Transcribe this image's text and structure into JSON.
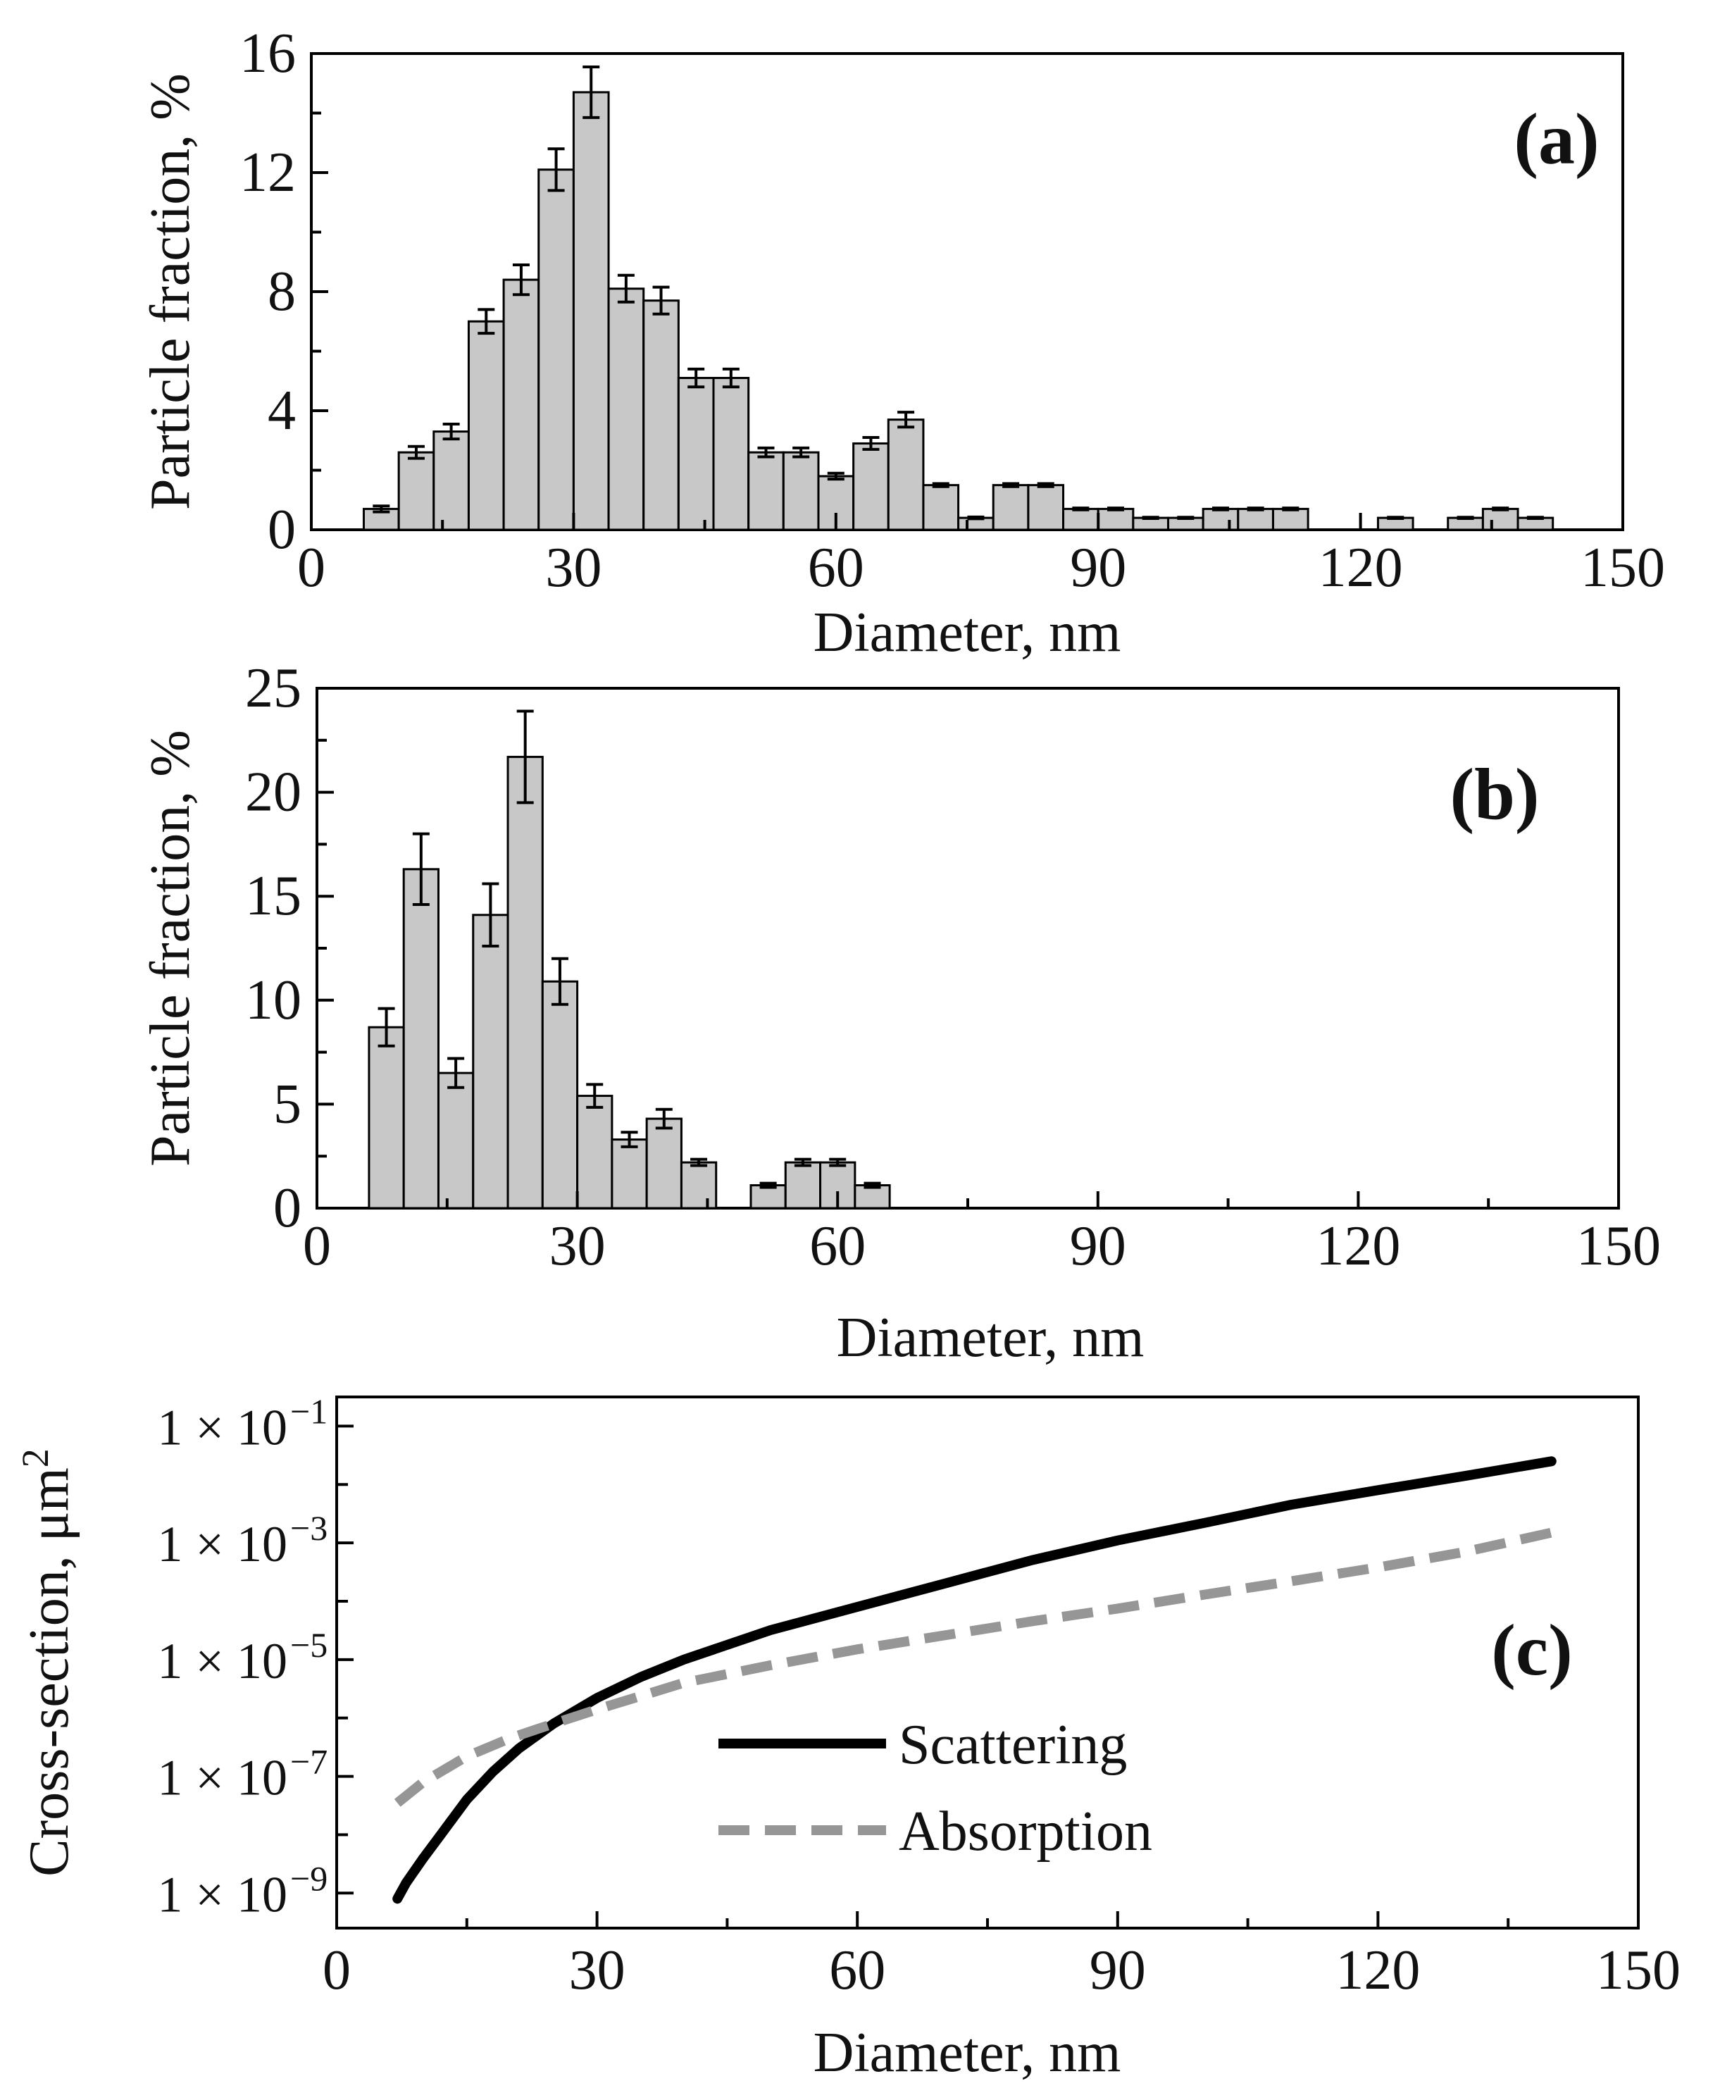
{
  "chart_data": [
    {
      "panel": "(a)",
      "type": "bar",
      "xlabel": "Diameter, nm",
      "ylabel": "Particle fraction, %",
      "xlim": [
        0,
        150
      ],
      "ylim": [
        0,
        16
      ],
      "xticks": [
        0,
        30,
        60,
        90,
        120,
        150
      ],
      "yticks": [
        0,
        4,
        8,
        12,
        16
      ],
      "bin_width": 4,
      "bin_centers": [
        8,
        12,
        16,
        20,
        24,
        28,
        32,
        36,
        40,
        44,
        48,
        52,
        56,
        60,
        64,
        68,
        72,
        76,
        80,
        84,
        88,
        92,
        96,
        100,
        104,
        108,
        112,
        124,
        132,
        136,
        140
      ],
      "values": [
        0.7,
        2.6,
        3.3,
        7.0,
        8.4,
        12.1,
        14.7,
        8.1,
        7.7,
        5.1,
        5.1,
        2.6,
        2.6,
        1.8,
        2.9,
        3.7,
        1.5,
        0.4,
        1.5,
        1.5,
        0.7,
        0.7,
        0.4,
        0.4,
        0.7,
        0.7,
        0.7,
        0.4,
        0.4,
        0.7,
        0.4
      ],
      "errors": [
        0.1,
        0.2,
        0.25,
        0.4,
        0.5,
        0.7,
        0.85,
        0.45,
        0.45,
        0.3,
        0.3,
        0.15,
        0.15,
        0.1,
        0.2,
        0.25,
        0.05,
        0.03,
        0.05,
        0.05,
        0.03,
        0.03,
        0.02,
        0.02,
        0.03,
        0.03,
        0.03,
        0.02,
        0.02,
        0.03,
        0.02
      ]
    },
    {
      "panel": "(b)",
      "type": "bar",
      "xlabel": "Diameter, nm",
      "ylabel": "Particle fraction, %",
      "xlim": [
        0,
        150
      ],
      "ylim": [
        0,
        25
      ],
      "xticks": [
        0,
        30,
        60,
        90,
        120,
        150
      ],
      "yticks": [
        0,
        5,
        10,
        15,
        20,
        25
      ],
      "bin_width": 4,
      "bin_centers": [
        8,
        12,
        16,
        20,
        24,
        28,
        32,
        36,
        40,
        44,
        52,
        56,
        60,
        64
      ],
      "values": [
        8.7,
        16.3,
        6.5,
        14.1,
        21.7,
        10.9,
        5.4,
        3.3,
        4.3,
        2.2,
        1.1,
        2.2,
        2.2,
        1.1
      ],
      "errors": [
        0.9,
        1.7,
        0.7,
        1.5,
        2.2,
        1.1,
        0.55,
        0.35,
        0.45,
        0.15,
        0.1,
        0.15,
        0.15,
        0.1
      ]
    },
    {
      "panel": "(c)",
      "type": "line",
      "yscale": "log",
      "xlabel": "Diameter, nm",
      "ylabel": "Cross-section, μm",
      "ylabel_sup": "2",
      "xlim": [
        0,
        150
      ],
      "ylim_exponent": [
        -9.6,
        -0.5
      ],
      "xticks": [
        0,
        30,
        60,
        90,
        120,
        150
      ],
      "ytick_exponents": [
        -9,
        -7,
        -5,
        -3,
        -1
      ],
      "ytick_prefix": "1 × 10",
      "ytick_superscripts": [
        "−9",
        "−7",
        "−5",
        "−3",
        "−1"
      ],
      "legend_position": "lower-center",
      "series": [
        {
          "name": "Scattering",
          "color": "#000000",
          "dash": "solid",
          "x": [
            7,
            8,
            10,
            12,
            15,
            18,
            21,
            25,
            30,
            35,
            40,
            50,
            60,
            70,
            80,
            90,
            100,
            110,
            120,
            130,
            140
          ],
          "y": [
            8e-10,
            1.5e-09,
            4e-09,
            1e-08,
            4e-08,
            1.2e-07,
            3e-07,
            8e-07,
            2.2e-06,
            5e-06,
            1e-05,
            3.2e-05,
            8e-05,
            0.0002,
            0.0005,
            0.0011,
            0.0022,
            0.0045,
            0.008,
            0.014,
            0.025
          ]
        },
        {
          "name": "Absorption",
          "color": "#969696",
          "dash": "dashed",
          "x": [
            7,
            10,
            15,
            20,
            25,
            30,
            40,
            50,
            60,
            70,
            80,
            90,
            100,
            110,
            120,
            130,
            140
          ],
          "y": [
            3.5e-08,
            8e-08,
            2.2e-07,
            4.5e-07,
            8e-07,
            1.4e-06,
            4e-06,
            8e-06,
            1.5e-05,
            2.6e-05,
            4.5e-05,
            7.5e-05,
            0.00013,
            0.00022,
            0.00038,
            0.0007,
            0.0015
          ]
        }
      ]
    }
  ]
}
